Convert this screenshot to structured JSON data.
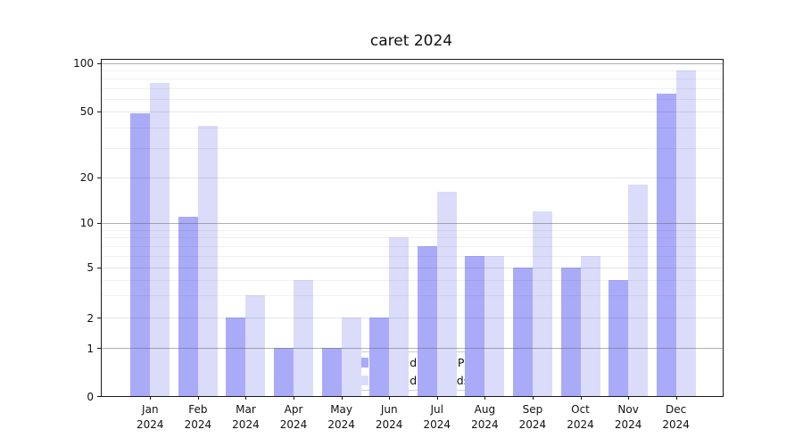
{
  "title": "caret 2024",
  "chart_data": {
    "type": "bar",
    "title": "caret 2024",
    "categories": [
      "Jan",
      "Feb",
      "Mar",
      "Apr",
      "May",
      "Jun",
      "Jul",
      "Aug",
      "Sep",
      "Oct",
      "Nov",
      "Dec"
    ],
    "category_year": "2024",
    "series": [
      {
        "name": "Nb of distinct IPs",
        "color": "#a9abf8",
        "values": [
          49,
          11,
          2,
          1,
          1,
          2,
          7,
          6,
          5,
          5,
          4,
          65
        ]
      },
      {
        "name": "Nb of downloads",
        "color": "#dadcfa",
        "values": [
          75,
          41,
          3,
          4,
          2,
          8,
          16,
          6,
          12,
          6,
          18,
          90
        ]
      }
    ],
    "y_axis": {
      "scale": "log-above-1-with-zero-baseline",
      "major_tick_labels": [
        "0",
        "1",
        "2",
        "5",
        "10",
        "20",
        "50",
        "100"
      ],
      "major_ticks": [
        0,
        1,
        2,
        5,
        10,
        20,
        50,
        100
      ],
      "power_of_ten_gridlines": [
        1,
        10,
        100
      ],
      "minor_ticks": [
        3,
        4,
        6,
        7,
        8,
        9,
        30,
        40,
        60,
        70,
        80,
        90
      ],
      "ylim": [
        0,
        110
      ]
    },
    "legend": {
      "position": "lower-center-inside",
      "items": [
        {
          "label": "Nb of distinct IPs",
          "color": "#a9abf8"
        },
        {
          "label": "Nb of downloads",
          "color": "#dadcfa"
        }
      ]
    },
    "grid": "on"
  }
}
